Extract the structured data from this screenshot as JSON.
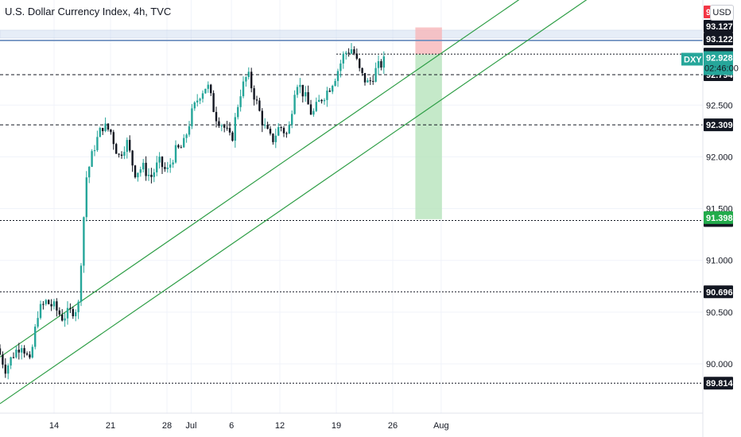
{
  "header": {
    "title": "U.S. Dollar Currency Index, 4h, TVC",
    "currency_button": "USD"
  },
  "colors": {
    "up": "#26a69a",
    "down": "#131722",
    "grid": "#f0f3fa",
    "channel": "#2e9e46",
    "level_line": "#131722",
    "target_zone": "#b7e4bb",
    "stop_zone": "#f7b6b9",
    "resistance_band": "#c8d8ee",
    "price_tag": "#26a69a",
    "red_tag": "#f23645",
    "green_tag": "#22ab4b"
  },
  "chart_data": {
    "type": "candlestick",
    "symbol": "DXY",
    "interval": "4h",
    "x_tick_labels": [
      "14",
      "21",
      "28",
      "Jul",
      "6",
      "12",
      "19",
      "26",
      "Aug"
    ],
    "y_tick_labels": [
      "90.000",
      "90.500",
      "91.000",
      "91.500",
      "92.000",
      "92.500"
    ],
    "ylim": [
      89.7,
      93.4
    ],
    "price_levels": [
      {
        "value": "93.127",
        "style": "band-top"
      },
      {
        "value": "93.122",
        "style": "band-bottom"
      },
      {
        "value": "92.992",
        "style": "dotted"
      },
      {
        "value": "92.794",
        "style": "dashed"
      },
      {
        "value": "92.309",
        "style": "dashed"
      },
      {
        "value": "91.385",
        "style": "dotted"
      },
      {
        "value": "90.696",
        "style": "dotted"
      },
      {
        "value": "89.814",
        "style": "dotted"
      }
    ],
    "current_price": {
      "symbol": "DXY",
      "value": "92.928",
      "countdown": "02:46:00"
    },
    "stop_label": "93",
    "target_label": "91.398",
    "position": {
      "entry": 92.99,
      "stop": 93.25,
      "target": 91.398
    },
    "trendlines": [
      {
        "name": "upper channel",
        "from": [
          "Jun 7",
          90.05
        ],
        "to": [
          "Aug 1",
          93.0
        ]
      },
      {
        "name": "lower channel",
        "from": [
          "Jun 7",
          89.6
        ],
        "to": [
          "Aug 1",
          92.55
        ]
      }
    ],
    "path_points": [
      [
        "Jun 7",
        90.15
      ],
      [
        "Jun 8",
        89.95
      ],
      [
        "Jun 9",
        90.1
      ],
      [
        "Jun 10",
        90.2
      ],
      [
        "Jun 11",
        90.0
      ],
      [
        "Jun 12",
        90.5
      ],
      [
        "Jun 13",
        90.6
      ],
      [
        "Jun 14",
        90.55
      ],
      [
        "Jun 15",
        90.45
      ],
      [
        "Jun 16",
        90.5
      ],
      [
        "Jun 17",
        90.55
      ],
      [
        "Jun 17.5",
        91.2
      ],
      [
        "Jun 18",
        91.8
      ],
      [
        "Jun 19",
        92.1
      ],
      [
        "Jun 20",
        92.3
      ],
      [
        "Jun 21",
        92.25
      ],
      [
        "Jun 22",
        92.0
      ],
      [
        "Jun 23",
        92.15
      ],
      [
        "Jun 24",
        91.85
      ],
      [
        "Jun 25",
        91.9
      ],
      [
        "Jun 26",
        91.8
      ],
      [
        "Jun 27",
        91.95
      ],
      [
        "Jun 28",
        91.85
      ],
      [
        "Jun 29",
        92.05
      ],
      [
        "Jun 30",
        92.1
      ],
      [
        "Jul 1",
        92.4
      ],
      [
        "Jul 2",
        92.6
      ],
      [
        "Jul 3",
        92.7
      ],
      [
        "Jul 4",
        92.4
      ],
      [
        "Jul 5",
        92.3
      ],
      [
        "Jul 6",
        92.15
      ],
      [
        "Jul 7",
        92.6
      ],
      [
        "Jul 8",
        92.8
      ],
      [
        "Jul 9",
        92.55
      ],
      [
        "Jul 10",
        92.3
      ],
      [
        "Jul 11",
        92.15
      ],
      [
        "Jul 12",
        92.3
      ],
      [
        "Jul 13",
        92.2
      ],
      [
        "Jul 14",
        92.75
      ],
      [
        "Jul 15",
        92.6
      ],
      [
        "Jul 16",
        92.4
      ],
      [
        "Jul 17",
        92.55
      ],
      [
        "Jul 18",
        92.65
      ],
      [
        "Jul 19",
        92.8
      ],
      [
        "Jul 20",
        93.0
      ],
      [
        "Jul 21",
        93.05
      ],
      [
        "Jul 22",
        92.8
      ],
      [
        "Jul 23",
        92.7
      ],
      [
        "Jul 24",
        92.85
      ],
      [
        "Jul 25",
        92.93
      ]
    ]
  }
}
